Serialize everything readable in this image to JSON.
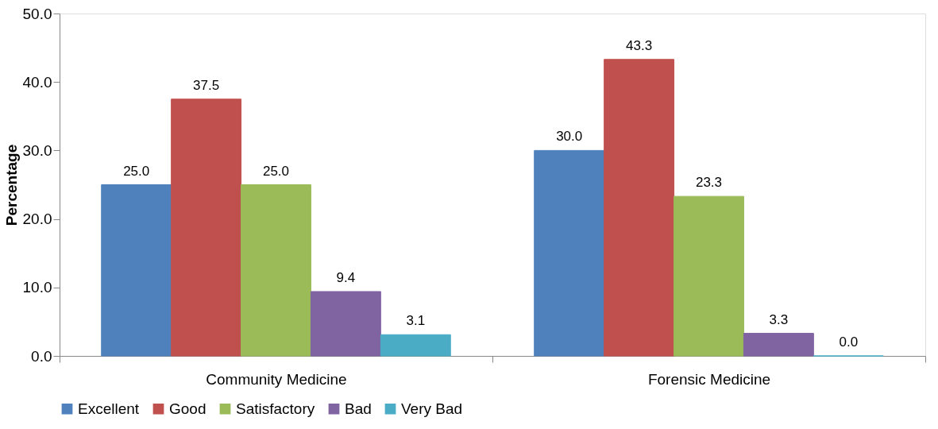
{
  "chart_data": {
    "type": "bar",
    "ylabel": "Percentage",
    "categories": [
      "Community Medicine",
      "Forensic Medicine"
    ],
    "series": [
      {
        "name": "Excellent",
        "color": "#4f81bd",
        "values": [
          25.0,
          30.0
        ],
        "value_labels": [
          "25.0",
          "30.0"
        ]
      },
      {
        "name": "Good",
        "color": "#c0504d",
        "values": [
          37.5,
          43.3
        ],
        "value_labels": [
          "37.5",
          "43.3"
        ]
      },
      {
        "name": "Satisfactory",
        "color": "#9bbb59",
        "values": [
          25.0,
          23.3
        ],
        "value_labels": [
          "25.0",
          "23.3"
        ]
      },
      {
        "name": "Bad",
        "color": "#8064a2",
        "values": [
          9.4,
          3.3
        ],
        "value_labels": [
          "9.4",
          "3.3"
        ]
      },
      {
        "name": "Very Bad",
        "color": "#4bacc6",
        "values": [
          3.1,
          0.0
        ],
        "value_labels": [
          "3.1",
          "0.0"
        ]
      }
    ],
    "ylim": [
      0,
      50
    ],
    "yticks": [
      {
        "value": 0,
        "label": "0.0"
      },
      {
        "value": 10,
        "label": "10.0"
      },
      {
        "value": 20,
        "label": "20.0"
      },
      {
        "value": 30,
        "label": "30.0"
      },
      {
        "value": 40,
        "label": "40.0"
      },
      {
        "value": 50,
        "label": "50.0"
      }
    ],
    "grid": false,
    "legend": "bottom"
  }
}
